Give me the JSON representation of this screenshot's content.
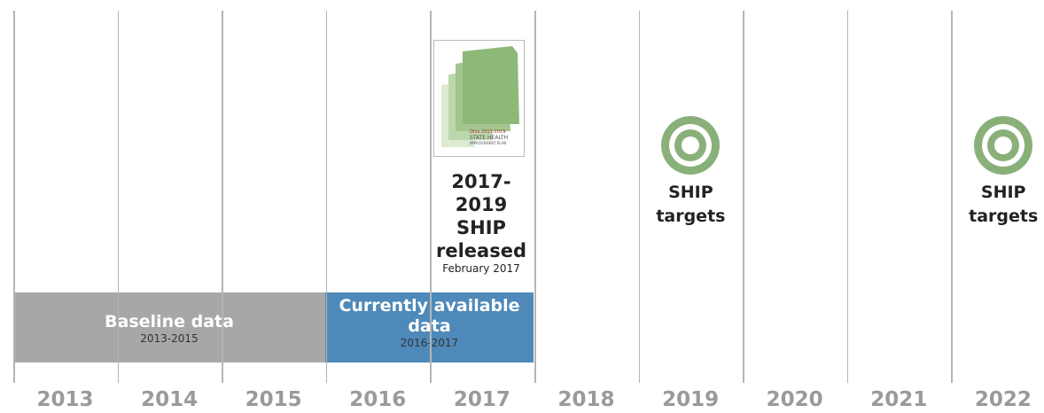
{
  "years": [
    "2013",
    "2014",
    "2015",
    "2016",
    "2017",
    "2018",
    "2019",
    "2020",
    "2021",
    "2022"
  ],
  "periods": [
    {
      "title": "Baseline data",
      "range": "2013-2015"
    },
    {
      "title": "Currently available data",
      "range": "2016-2017"
    }
  ],
  "release": {
    "title": "2017-2019 SHIP released",
    "date": "February 2017",
    "cover": {
      "line1": "Ohio 2017-2019",
      "line2": "STATE HEALTH",
      "line3": "IMPROVEMENT PLAN"
    }
  },
  "targets": [
    {
      "label": "SHIP targets"
    },
    {
      "label": "SHIP targets"
    }
  ]
}
